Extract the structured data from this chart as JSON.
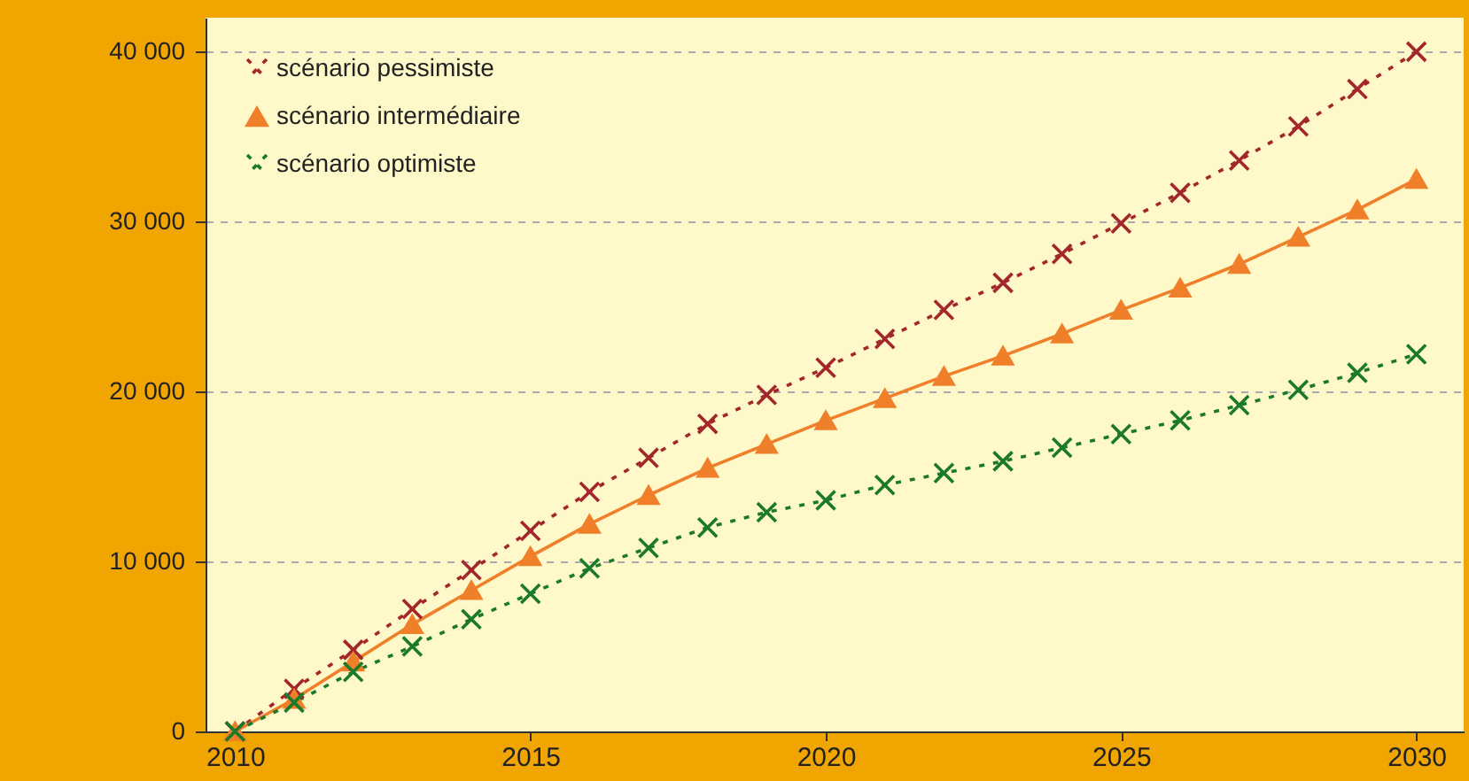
{
  "chart_data": {
    "type": "line",
    "x": [
      2010,
      2011,
      2012,
      2013,
      2014,
      2015,
      2016,
      2017,
      2018,
      2019,
      2020,
      2021,
      2022,
      2023,
      2024,
      2025,
      2026,
      2027,
      2028,
      2029,
      2030
    ],
    "series": [
      {
        "name": "scénario pessimiste",
        "color": "#a3262a",
        "marker": "cross",
        "line_style": "dashed",
        "values": [
          0,
          2500,
          4800,
          7200,
          9500,
          11800,
          14100,
          16100,
          18100,
          19800,
          21400,
          23100,
          24800,
          26400,
          28100,
          29900,
          31700,
          33600,
          35600,
          37800,
          40000
        ]
      },
      {
        "name": "scénario intermédiaire",
        "color": "#f07f2a",
        "marker": "triangle",
        "line_style": "solid",
        "values": [
          0,
          1900,
          4100,
          6300,
          8300,
          10300,
          12200,
          13900,
          15500,
          16900,
          18300,
          19600,
          20900,
          22100,
          23400,
          24800,
          26100,
          27500,
          29100,
          30700,
          32500
        ]
      },
      {
        "name": "scénario optimiste",
        "color": "#1a7a2a",
        "marker": "cross",
        "line_style": "dashed",
        "values": [
          0,
          1700,
          3500,
          5000,
          6600,
          8100,
          9600,
          10800,
          12000,
          12900,
          13600,
          14500,
          15200,
          15900,
          16700,
          17500,
          18300,
          19200,
          20100,
          21100,
          22200
        ]
      }
    ],
    "xlim": [
      2009.5,
      2030.8
    ],
    "xticks": [
      2010,
      2015,
      2020,
      2025,
      2030
    ],
    "ylim": [
      0,
      42000
    ],
    "yticks": [
      {
        "value": 0,
        "label": "0"
      },
      {
        "value": 10000,
        "label": "10 000"
      },
      {
        "value": 20000,
        "label": "20 000"
      },
      {
        "value": 30000,
        "label": "30 000"
      },
      {
        "value": 40000,
        "label": "40 000"
      }
    ],
    "grid": "y",
    "legend": "top left"
  }
}
